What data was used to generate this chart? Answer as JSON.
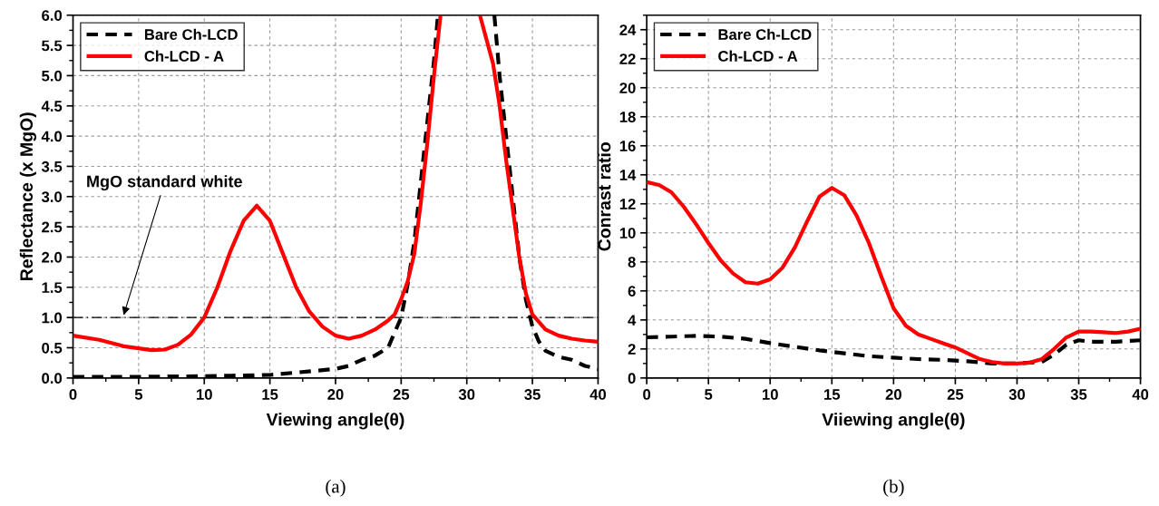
{
  "chart_data": [
    {
      "type": "line",
      "xlabel": "Viewing angle(θ)",
      "ylabel": "Reflectance (x MgO)",
      "xlim": [
        0,
        40
      ],
      "ylim": [
        0,
        6
      ],
      "xticks": [
        0,
        5,
        10,
        15,
        20,
        25,
        30,
        35,
        40
      ],
      "yticks": [
        {
          "value": 0,
          "label": "0.0"
        },
        0.5,
        {
          "value": 1,
          "label": "1.0"
        },
        1.5,
        {
          "value": 2,
          "label": "2.0"
        },
        2.5,
        {
          "value": 3,
          "label": "3.0"
        },
        3.5,
        {
          "value": 4,
          "label": "4.0"
        },
        4.5,
        {
          "value": 5,
          "label": "5.0"
        },
        5.5,
        {
          "value": 6,
          "label": "6.0"
        }
      ],
      "grid": true,
      "legend": "top left",
      "series": [
        {
          "name": "Bare Ch-LCD",
          "color": "#000000",
          "line_style": "dashed",
          "x": [
            0,
            5,
            10,
            15,
            20,
            21,
            22,
            23,
            24,
            24.5,
            25,
            25.5,
            26,
            26.5,
            27,
            27.5,
            27.8,
            30,
            32.1,
            32.5,
            33,
            33.5,
            34,
            34.5,
            35,
            35.5,
            36,
            37,
            38,
            39,
            40
          ],
          "values": [
            0.02,
            0.02,
            0.03,
            0.05,
            0.15,
            0.2,
            0.3,
            0.37,
            0.5,
            0.75,
            1.0,
            1.55,
            2.25,
            3.25,
            4.25,
            5.25,
            6.0,
            null,
            6.0,
            5.0,
            4.0,
            3.0,
            2.0,
            1.3,
            0.85,
            0.6,
            0.45,
            0.35,
            0.3,
            0.2,
            0.15
          ]
        },
        {
          "name": "Ch-LCD - A",
          "color": "#ff0000",
          "line_style": "solid",
          "x": [
            0,
            2,
            4,
            6,
            7,
            8,
            9,
            10,
            11,
            12,
            13,
            14,
            15,
            16,
            17,
            18,
            19,
            20,
            21,
            22,
            23,
            24,
            24.5,
            25,
            25.5,
            26,
            26.5,
            27,
            27.5,
            28,
            29.5,
            31,
            32,
            32.5,
            33,
            33.5,
            34,
            34.5,
            35,
            36,
            37,
            38,
            39,
            40
          ],
          "values": [
            0.7,
            0.63,
            0.52,
            0.46,
            0.47,
            0.55,
            0.72,
            1.0,
            1.5,
            2.1,
            2.6,
            2.85,
            2.6,
            2.05,
            1.5,
            1.1,
            0.85,
            0.7,
            0.65,
            0.7,
            0.8,
            0.95,
            1.05,
            1.3,
            1.6,
            2.05,
            2.9,
            3.9,
            5.0,
            6.0,
            null,
            6.0,
            5.2,
            4.5,
            3.6,
            2.8,
            2.0,
            1.4,
            1.05,
            0.8,
            0.7,
            0.65,
            0.62,
            0.6
          ]
        }
      ],
      "ref_lines": [
        {
          "axis": "y",
          "value": 1.0,
          "color": "#000000",
          "line_style": "dashdot"
        }
      ],
      "annotations": [
        {
          "text": "MgO standard white",
          "x": 3.8,
          "y": 1.0
        },
        "(a)"
      ]
    },
    {
      "type": "line",
      "xlabel": "Viiewing angle(θ)",
      "ylabel": "Conrast ratio",
      "xlim": [
        0,
        40
      ],
      "ylim": [
        0,
        25
      ],
      "xticks": [
        0,
        5,
        10,
        15,
        20,
        25,
        30,
        35,
        40
      ],
      "yticks": [
        0,
        2,
        4,
        6,
        8,
        10,
        12,
        14,
        16,
        18,
        20,
        22,
        24
      ],
      "grid": true,
      "legend": "top left",
      "series": [
        {
          "name": "Bare Ch-LCD",
          "color": "#000000",
          "line_style": "dashed",
          "x": [
            0,
            2,
            4,
            6,
            8,
            10,
            12,
            14,
            16,
            18,
            20,
            22,
            24,
            26,
            28,
            30,
            32,
            33,
            34,
            35,
            36,
            38,
            40
          ],
          "values": [
            2.8,
            2.85,
            2.9,
            2.85,
            2.7,
            2.4,
            2.15,
            1.9,
            1.7,
            1.5,
            1.4,
            1.3,
            1.25,
            1.15,
            1.0,
            1.0,
            1.1,
            1.6,
            2.3,
            2.6,
            2.5,
            2.5,
            2.6
          ]
        },
        {
          "name": "Ch-LCD - A",
          "color": "#ff0000",
          "line_style": "solid",
          "x": [
            0,
            1,
            2,
            3,
            4,
            5,
            6,
            7,
            8,
            9,
            10,
            11,
            12,
            13,
            14,
            15,
            16,
            17,
            18,
            19,
            20,
            21,
            22,
            23,
            24,
            25,
            26,
            27,
            28,
            29,
            30,
            31,
            32,
            33,
            34,
            35,
            36,
            37,
            38,
            39,
            40
          ],
          "values": [
            13.5,
            13.3,
            12.8,
            11.8,
            10.6,
            9.3,
            8.1,
            7.2,
            6.6,
            6.5,
            6.8,
            7.6,
            9.0,
            10.8,
            12.5,
            13.1,
            12.6,
            11.2,
            9.3,
            7.0,
            4.8,
            3.6,
            3.0,
            2.7,
            2.4,
            2.1,
            1.7,
            1.3,
            1.1,
            1.0,
            1.0,
            1.05,
            1.3,
            2.0,
            2.8,
            3.2,
            3.2,
            3.15,
            3.1,
            3.2,
            3.4
          ]
        }
      ],
      "annotations": [
        "(b)"
      ]
    }
  ]
}
